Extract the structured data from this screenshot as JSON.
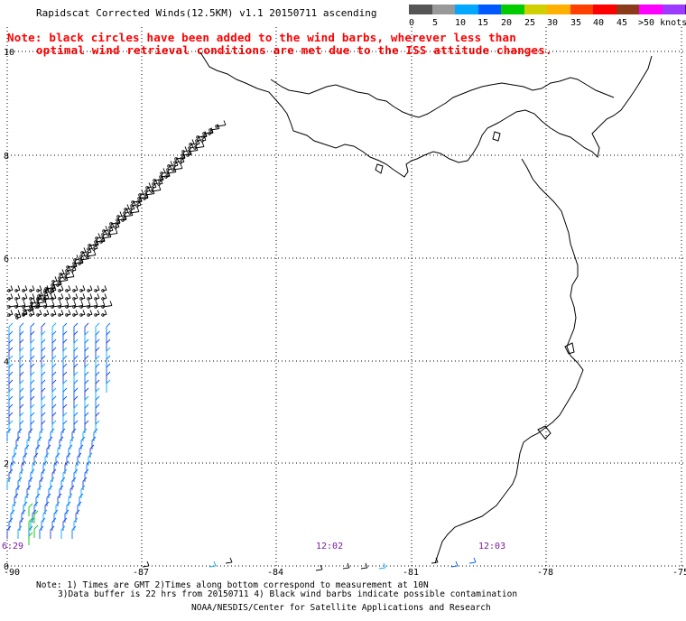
{
  "header": {
    "title": "Rapidscat Corrected Winds(12.5KM) v1.1 20150711 ascending"
  },
  "note": {
    "line1": "Note: black circles have been added to the wind barbs, wherever less than",
    "line2": "optimal wind retrieval conditions are met due to the ISS attitude changes.",
    "color": "#ff0000"
  },
  "legend": {
    "colors": [
      "#555555",
      "#999999",
      "#00a8ff",
      "#0058ff",
      "#00cc00",
      "#d0d000",
      "#ffb000",
      "#ff4000",
      "#ff0000",
      "#8b3a1a",
      "#ff00ff",
      "#9c3bff",
      "#4a1080"
    ],
    "labels": [
      "0",
      "5",
      "10",
      "15",
      "20",
      "25",
      "30",
      "35",
      "40",
      "45",
      ">50 knots"
    ]
  },
  "axes": {
    "x_labels": [
      "-90",
      "-87",
      "-84",
      "-81",
      "-78",
      "-75"
    ],
    "y_labels": [
      "10",
      "8",
      "6",
      "4",
      "2",
      "0"
    ]
  },
  "time_labels": [
    "6:29",
    "12:02",
    "12:03"
  ],
  "footer": {
    "line1": "Note: 1) Times are GMT 2)Times along bottom correspond to measurement at 10N",
    "line2": "3)Data buffer is 22 hrs from 20150711 4) Black wind barbs indicate possible contamination",
    "line3": "NOAA/NESDIS/Center for Satellite Applications and Research"
  }
}
